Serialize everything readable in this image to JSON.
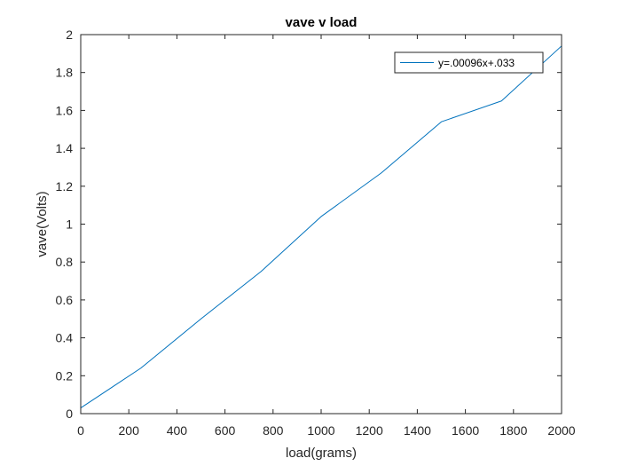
{
  "chart_data": {
    "type": "line",
    "title": "vave v load",
    "xlabel": "load(grams)",
    "ylabel": "vave(Volts)",
    "xlim": [
      0,
      2000
    ],
    "ylim": [
      0,
      2
    ],
    "x_ticks": [
      0,
      200,
      400,
      600,
      800,
      1000,
      1200,
      1400,
      1600,
      1800,
      2000
    ],
    "y_ticks": [
      0,
      0.2,
      0.4,
      0.6,
      0.8,
      1,
      1.2,
      1.4,
      1.6,
      1.8,
      2
    ],
    "x_tick_labels": [
      "0",
      "200",
      "400",
      "600",
      "800",
      "1000",
      "1200",
      "1400",
      "1600",
      "1800",
      "2000"
    ],
    "y_tick_labels": [
      "0",
      "0.2",
      "0.4",
      "0.6",
      "0.8",
      "1",
      "1.2",
      "1.4",
      "1.6",
      "1.8",
      "2"
    ],
    "grid": false,
    "legend_position": "top-right",
    "series": [
      {
        "name": "y=.00096x+.033",
        "color": "#0072bd",
        "x": [
          0,
          250,
          500,
          750,
          1000,
          1250,
          1500,
          1750,
          2000
        ],
        "y": [
          0.03,
          0.24,
          0.5,
          0.75,
          1.04,
          1.27,
          1.54,
          1.65,
          1.94
        ]
      }
    ]
  }
}
